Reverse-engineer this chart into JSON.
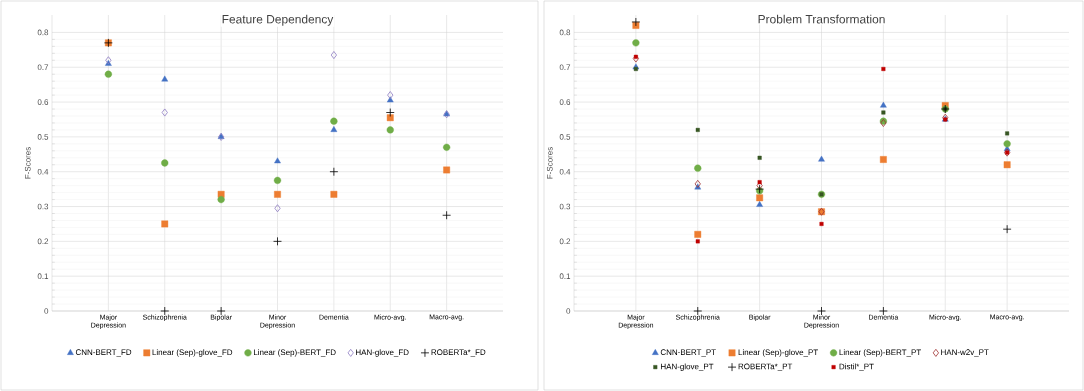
{
  "chart_data": [
    {
      "type": "scatter",
      "title": "Feature Dependency",
      "ylabel": "F-Scores",
      "categories": [
        "Major Depression",
        "Schizophrenia",
        "Bipolar",
        "Minor Depression",
        "Dementia",
        "Micro-avg.",
        "Macro-avg."
      ],
      "ylim": [
        0,
        0.85
      ],
      "yticks": [
        0,
        0.1,
        0.2,
        0.3,
        0.4,
        0.5,
        0.6,
        0.7,
        0.8
      ],
      "grid": true,
      "legend": "bottom",
      "series": [
        {
          "name": "CNN-BERT_FD",
          "color": "#4472c4",
          "marker": "triangle",
          "values": [
            0.71,
            0.665,
            0.5,
            0.43,
            0.52,
            0.605,
            0.565
          ]
        },
        {
          "name": "Linear (Sep)-glove_FD",
          "color": "#ed7d31",
          "marker": "square",
          "values": [
            0.77,
            0.25,
            0.335,
            0.335,
            0.335,
            0.555,
            0.405
          ]
        },
        {
          "name": "Linear (Sep)-BERT_FD",
          "color": "#70ad47",
          "marker": "circle",
          "values": [
            0.68,
            0.425,
            0.32,
            0.375,
            0.545,
            0.52,
            0.47
          ]
        },
        {
          "name": "HAN-glove_FD",
          "color": "#8e7cc3",
          "marker": "diamond",
          "values": [
            0.72,
            0.57,
            0.5,
            0.295,
            0.735,
            0.62,
            0.565
          ]
        },
        {
          "name": "ROBERTa*_FD",
          "color": "#000000",
          "marker": "cross",
          "values": [
            0.77,
            0,
            0,
            0.2,
            0.4,
            0.57,
            0.275
          ]
        }
      ]
    },
    {
      "type": "scatter",
      "title": "Problem Transformation",
      "ylabel": "F-Scores",
      "categories": [
        "Major Depression",
        "Schizophrenia",
        "Bipolar",
        "Minor Depression",
        "Dementia",
        "Micro-avg.",
        "Macro-avg."
      ],
      "ylim": [
        0,
        0.85
      ],
      "yticks": [
        0,
        0.1,
        0.2,
        0.3,
        0.4,
        0.5,
        0.6,
        0.7,
        0.8
      ],
      "grid": true,
      "legend": "bottom",
      "series": [
        {
          "name": "CNN-BERT_PT",
          "color": "#4472c4",
          "marker": "triangle",
          "values": [
            0.7,
            0.355,
            0.305,
            0.435,
            0.59,
            0.55,
            0.465
          ]
        },
        {
          "name": "Linear (Sep)-glove_PT",
          "color": "#ed7d31",
          "marker": "square",
          "values": [
            0.82,
            0.22,
            0.325,
            0.285,
            0.435,
            0.59,
            0.42
          ]
        },
        {
          "name": "Linear (Sep)-BERT_PT",
          "color": "#70ad47",
          "marker": "circle",
          "values": [
            0.77,
            0.41,
            0.345,
            0.335,
            0.545,
            0.58,
            0.48
          ]
        },
        {
          "name": "HAN-w2v_PT",
          "color": "#a03030",
          "marker": "diamond",
          "values": [
            0.725,
            0.365,
            0.36,
            0.285,
            0.54,
            0.555,
            0.455
          ]
        },
        {
          "name": "HAN-glove_PT",
          "color": "#375623",
          "marker": "square",
          "values": [
            0.695,
            0.52,
            0.44,
            0.335,
            0.57,
            0.58,
            0.51
          ]
        },
        {
          "name": "ROBERTa*_PT",
          "color": "#000000",
          "marker": "cross",
          "values": [
            0.83,
            0,
            0.35,
            0,
            0,
            0.58,
            0.235
          ]
        },
        {
          "name": "Distil*_PT",
          "color": "#c00000",
          "marker": "square",
          "values": [
            0.73,
            0.2,
            0.37,
            0.25,
            0.695,
            0.55,
            0.455
          ]
        }
      ]
    }
  ]
}
